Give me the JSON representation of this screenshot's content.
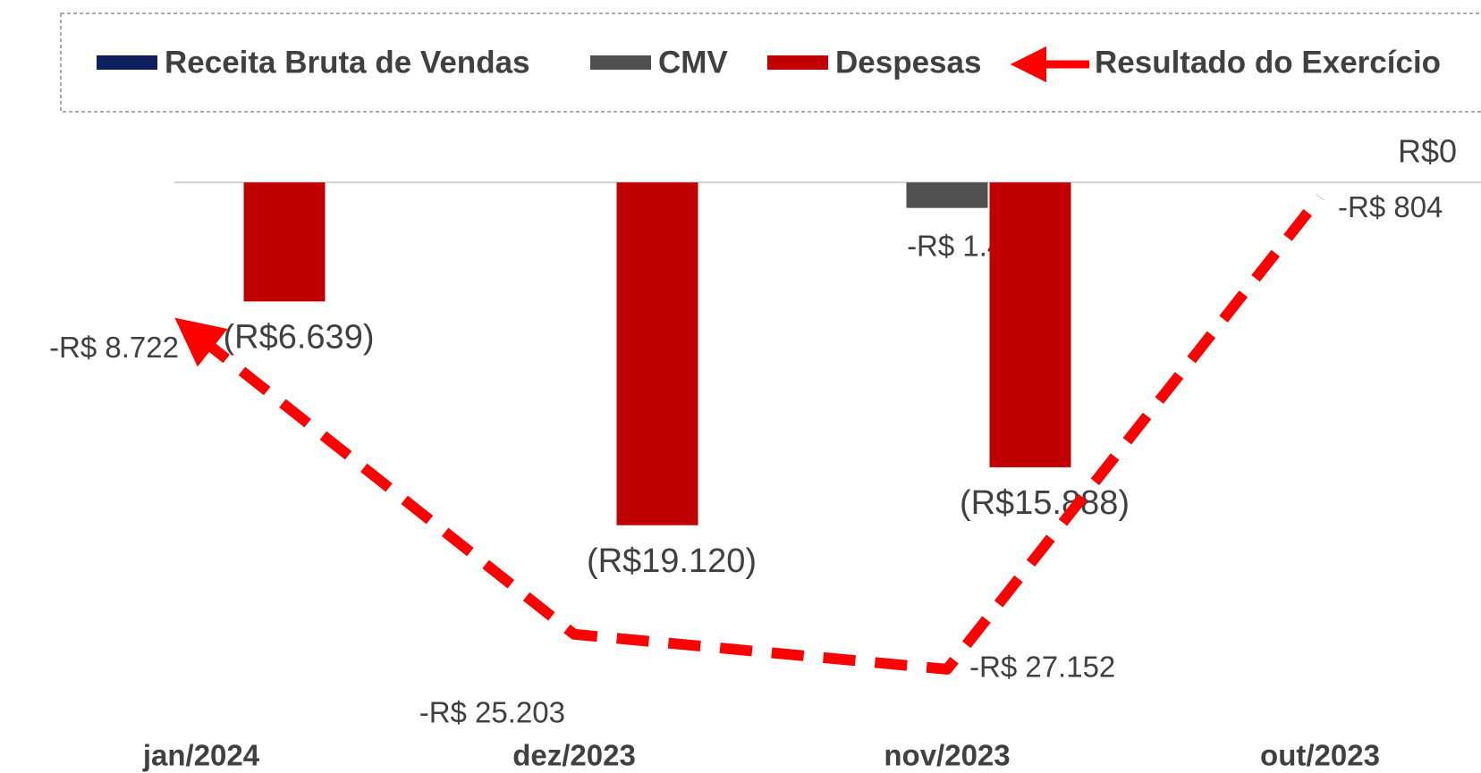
{
  "chart_data": {
    "type": "bar",
    "categories": [
      "jan/2024",
      "dez/2023",
      "nov/2023",
      "out/2023"
    ],
    "series": [
      {
        "name": "Receita Bruta de Vendas",
        "color": "#0d1f5c",
        "values": [
          0,
          0,
          0,
          0
        ]
      },
      {
        "name": "CMV",
        "color": "#505050",
        "values": [
          null,
          null,
          -1421,
          null
        ],
        "value_labels": [
          null,
          null,
          "-R$ 1.421",
          null
        ]
      },
      {
        "name": "Despesas",
        "color": "#c00000",
        "values": [
          -6639,
          -19120,
          -15888,
          0
        ],
        "value_labels": [
          "(R$6.639)",
          "(R$19.120)",
          "(R$15.888)",
          "R$0"
        ]
      },
      {
        "name": "Resultado do Exercício",
        "type": "line",
        "color": "#ff0000",
        "values": [
          -8722,
          -25203,
          -27152,
          -804
        ],
        "value_labels": [
          "-R$ 8.722",
          "-R$ 25.203",
          "-R$ 27.152",
          "-R$ 804"
        ]
      }
    ],
    "ylim": [
      -30000,
      2700
    ],
    "legend": "top"
  }
}
